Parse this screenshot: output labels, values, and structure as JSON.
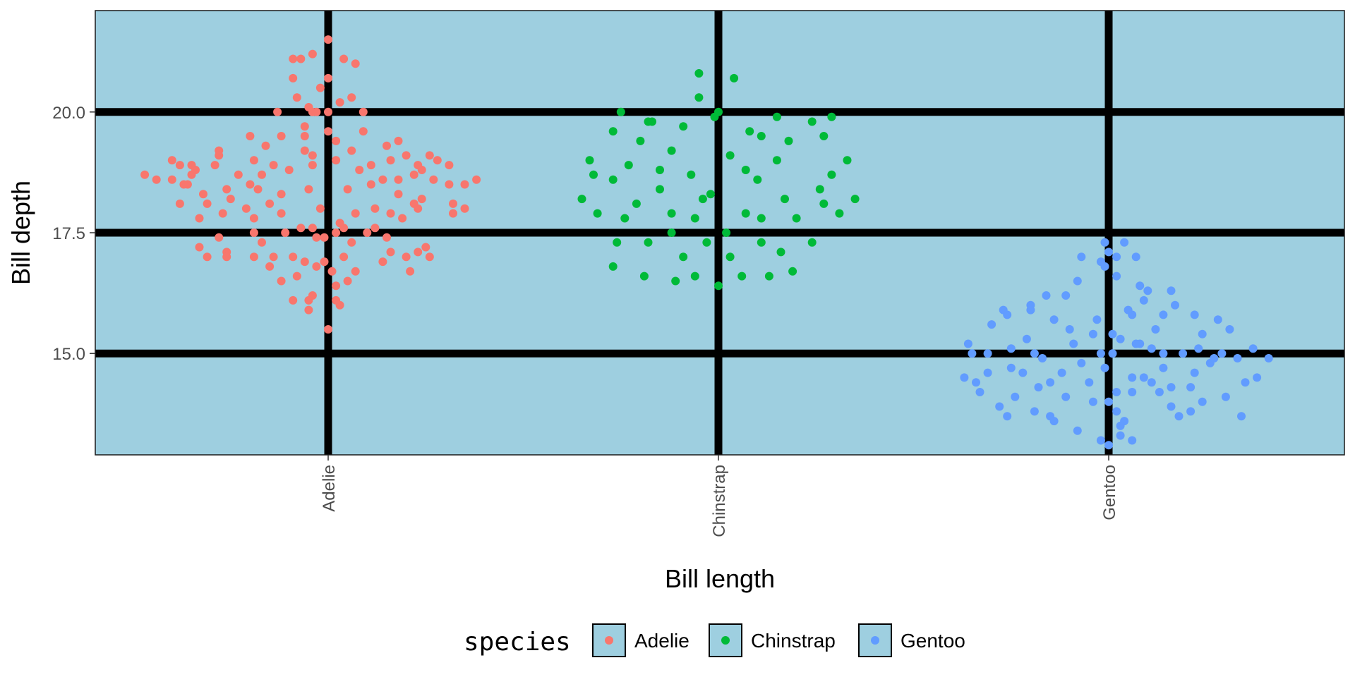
{
  "chart_data": {
    "type": "scatter",
    "title": "",
    "xlabel": "Bill length",
    "ylabel": "Bill depth",
    "categories": [
      "Adelie",
      "Chinstrap",
      "Gentoo"
    ],
    "ylim": [
      12.9,
      22.1
    ],
    "yticks": [
      15.0,
      17.5,
      20.0
    ],
    "ytick_labels": [
      "15.0",
      "17.5",
      "20.0"
    ],
    "grid": "major only, thick black lines",
    "panel_background": "#9ecfe0",
    "legend": {
      "title": "species",
      "position": "bottom",
      "entries": [
        "Adelie",
        "Chinstrap",
        "Gentoo"
      ]
    },
    "series": [
      {
        "name": "Adelie",
        "color": "#f8766d",
        "points": [
          [
            0.0,
            21.5
          ],
          [
            -0.04,
            21.2
          ],
          [
            0.04,
            21.1
          ],
          [
            -0.09,
            21.1
          ],
          [
            -0.07,
            21.1
          ],
          [
            0.07,
            21.0
          ],
          [
            -0.09,
            20.7
          ],
          [
            0.0,
            20.7
          ],
          [
            -0.02,
            20.5
          ],
          [
            0.06,
            20.3
          ],
          [
            -0.08,
            20.3
          ],
          [
            0.03,
            20.2
          ],
          [
            -0.05,
            20.1
          ],
          [
            -0.13,
            20.0
          ],
          [
            -0.04,
            20.0
          ],
          [
            0.0,
            20.0
          ],
          [
            0.09,
            20.0
          ],
          [
            -0.03,
            20.0
          ],
          [
            -0.06,
            19.7
          ],
          [
            0.0,
            19.6
          ],
          [
            0.09,
            19.6
          ],
          [
            -0.2,
            19.5
          ],
          [
            -0.12,
            19.5
          ],
          [
            -0.06,
            19.5
          ],
          [
            0.02,
            19.4
          ],
          [
            0.18,
            19.4
          ],
          [
            0.15,
            19.3
          ],
          [
            -0.16,
            19.3
          ],
          [
            -0.28,
            19.2
          ],
          [
            -0.28,
            19.1
          ],
          [
            -0.04,
            19.1
          ],
          [
            -0.06,
            19.2
          ],
          [
            0.06,
            19.2
          ],
          [
            0.2,
            19.1
          ],
          [
            0.26,
            19.1
          ],
          [
            -0.19,
            19.0
          ],
          [
            0.16,
            19.0
          ],
          [
            0.02,
            19.0
          ],
          [
            -0.14,
            18.9
          ],
          [
            -0.04,
            18.9
          ],
          [
            -0.29,
            18.9
          ],
          [
            -0.35,
            18.9
          ],
          [
            -0.38,
            18.9
          ],
          [
            -0.4,
            19.0
          ],
          [
            0.11,
            18.9
          ],
          [
            0.23,
            18.9
          ],
          [
            0.31,
            18.9
          ],
          [
            0.24,
            18.8
          ],
          [
            0.08,
            18.8
          ],
          [
            0.28,
            19.0
          ],
          [
            -0.34,
            18.8
          ],
          [
            -0.1,
            18.8
          ],
          [
            -0.17,
            18.7
          ],
          [
            0.22,
            18.7
          ],
          [
            -0.23,
            18.7
          ],
          [
            -0.47,
            18.7
          ],
          [
            0.14,
            18.6
          ],
          [
            0.18,
            18.6
          ],
          [
            -0.4,
            18.6
          ],
          [
            -0.36,
            18.5
          ],
          [
            -0.2,
            18.5
          ],
          [
            0.11,
            18.5
          ],
          [
            -0.18,
            18.4
          ],
          [
            0.05,
            18.4
          ],
          [
            -0.26,
            18.4
          ],
          [
            -0.05,
            18.4
          ],
          [
            0.18,
            18.3
          ],
          [
            -0.32,
            18.3
          ],
          [
            -0.12,
            18.3
          ],
          [
            -0.25,
            18.2
          ],
          [
            0.24,
            18.2
          ],
          [
            -0.15,
            18.1
          ],
          [
            0.22,
            18.1
          ],
          [
            -0.31,
            18.1
          ],
          [
            -0.38,
            18.1
          ],
          [
            -0.21,
            18.0
          ],
          [
            0.23,
            18.0
          ],
          [
            0.32,
            18.1
          ],
          [
            -0.02,
            18.0
          ],
          [
            0.12,
            18.0
          ],
          [
            0.35,
            18.0
          ],
          [
            -0.27,
            17.9
          ],
          [
            -0.12,
            17.9
          ],
          [
            0.07,
            17.9
          ],
          [
            0.16,
            17.9
          ],
          [
            -0.19,
            17.8
          ],
          [
            -0.33,
            17.8
          ],
          [
            0.32,
            17.9
          ],
          [
            0.19,
            17.8
          ],
          [
            0.03,
            17.7
          ],
          [
            -0.04,
            17.6
          ],
          [
            -0.07,
            17.6
          ],
          [
            0.04,
            17.6
          ],
          [
            0.12,
            17.6
          ],
          [
            -0.11,
            17.5
          ],
          [
            -0.19,
            17.5
          ],
          [
            0.02,
            17.5
          ],
          [
            0.1,
            17.5
          ],
          [
            -0.28,
            17.4
          ],
          [
            -0.03,
            17.4
          ],
          [
            -0.01,
            17.4
          ],
          [
            0.15,
            17.4
          ],
          [
            -0.17,
            17.3
          ],
          [
            0.06,
            17.3
          ],
          [
            0.25,
            17.2
          ],
          [
            -0.33,
            17.2
          ],
          [
            0.23,
            17.1
          ],
          [
            -0.31,
            17.0
          ],
          [
            -0.26,
            17.1
          ],
          [
            -0.09,
            17.0
          ],
          [
            0.16,
            17.1
          ],
          [
            0.26,
            17.0
          ],
          [
            0.2,
            17.0
          ],
          [
            -0.19,
            17.0
          ],
          [
            0.04,
            17.0
          ],
          [
            -0.14,
            17.0
          ],
          [
            -0.06,
            16.9
          ],
          [
            0.14,
            16.9
          ],
          [
            -0.01,
            16.9
          ],
          [
            -0.15,
            16.8
          ],
          [
            -0.03,
            16.8
          ],
          [
            0.01,
            16.7
          ],
          [
            0.07,
            16.7
          ],
          [
            -0.08,
            16.6
          ],
          [
            0.05,
            16.5
          ],
          [
            -0.12,
            16.5
          ],
          [
            0.02,
            16.4
          ],
          [
            -0.04,
            16.2
          ],
          [
            0.02,
            16.1
          ],
          [
            -0.05,
            16.1
          ],
          [
            -0.09,
            16.1
          ],
          [
            0.03,
            16.0
          ],
          [
            -0.05,
            15.9
          ],
          [
            0.0,
            15.5
          ],
          [
            -0.37,
            18.5
          ],
          [
            -0.35,
            18.7
          ],
          [
            0.27,
            18.6
          ],
          [
            0.31,
            18.5
          ],
          [
            -0.44,
            18.6
          ],
          [
            0.35,
            18.5
          ],
          [
            0.38,
            18.6
          ],
          [
            -0.26,
            17.0
          ],
          [
            0.21,
            16.7
          ]
        ]
      },
      {
        "name": "Chinstrap",
        "color": "#00ba38",
        "points": [
          [
            -0.05,
            20.8
          ],
          [
            0.04,
            20.7
          ],
          [
            -0.05,
            20.3
          ],
          [
            0.0,
            20.0
          ],
          [
            -0.25,
            20.0
          ],
          [
            -0.01,
            19.9
          ],
          [
            0.15,
            19.9
          ],
          [
            -0.18,
            19.8
          ],
          [
            -0.17,
            19.8
          ],
          [
            0.24,
            19.8
          ],
          [
            0.29,
            19.9
          ],
          [
            -0.27,
            19.6
          ],
          [
            0.08,
            19.6
          ],
          [
            0.11,
            19.5
          ],
          [
            0.27,
            19.5
          ],
          [
            -0.09,
            19.7
          ],
          [
            -0.2,
            19.4
          ],
          [
            0.18,
            19.4
          ],
          [
            -0.12,
            19.2
          ],
          [
            0.03,
            19.1
          ],
          [
            0.07,
            18.8
          ],
          [
            0.15,
            19.0
          ],
          [
            -0.33,
            19.0
          ],
          [
            -0.32,
            18.7
          ],
          [
            0.33,
            19.0
          ],
          [
            -0.15,
            18.8
          ],
          [
            0.29,
            18.7
          ],
          [
            -0.07,
            18.7
          ],
          [
            0.1,
            18.6
          ],
          [
            -0.27,
            18.6
          ],
          [
            -0.23,
            18.9
          ],
          [
            0.26,
            18.4
          ],
          [
            -0.15,
            18.4
          ],
          [
            -0.02,
            18.3
          ],
          [
            0.27,
            18.1
          ],
          [
            -0.21,
            18.1
          ],
          [
            0.17,
            18.2
          ],
          [
            -0.35,
            18.2
          ],
          [
            0.35,
            18.2
          ],
          [
            -0.04,
            18.2
          ],
          [
            -0.31,
            17.9
          ],
          [
            -0.12,
            17.9
          ],
          [
            0.07,
            17.9
          ],
          [
            -0.06,
            17.8
          ],
          [
            0.11,
            17.8
          ],
          [
            0.2,
            17.8
          ],
          [
            0.31,
            17.9
          ],
          [
            -0.24,
            17.8
          ],
          [
            0.02,
            17.5
          ],
          [
            -0.12,
            17.5
          ],
          [
            -0.26,
            17.3
          ],
          [
            -0.18,
            17.3
          ],
          [
            -0.03,
            17.3
          ],
          [
            0.11,
            17.3
          ],
          [
            0.24,
            17.3
          ],
          [
            0.16,
            17.1
          ],
          [
            -0.09,
            17.0
          ],
          [
            0.03,
            17.0
          ],
          [
            -0.27,
            16.8
          ],
          [
            -0.19,
            16.6
          ],
          [
            -0.06,
            16.6
          ],
          [
            0.06,
            16.6
          ],
          [
            0.13,
            16.6
          ],
          [
            0.19,
            16.7
          ],
          [
            0.0,
            16.4
          ],
          [
            -0.11,
            16.5
          ]
        ]
      },
      {
        "name": "Gentoo",
        "color": "#619cff",
        "points": [
          [
            -0.01,
            17.3
          ],
          [
            0.04,
            17.3
          ],
          [
            0.0,
            17.1
          ],
          [
            0.02,
            17.0
          ],
          [
            -0.07,
            17.0
          ],
          [
            0.07,
            17.0
          ],
          [
            -0.01,
            16.8
          ],
          [
            -0.02,
            16.9
          ],
          [
            0.02,
            16.6
          ],
          [
            0.08,
            16.4
          ],
          [
            -0.08,
            16.5
          ],
          [
            0.1,
            16.3
          ],
          [
            0.16,
            16.3
          ],
          [
            -0.11,
            16.2
          ],
          [
            -0.16,
            16.2
          ],
          [
            0.09,
            16.1
          ],
          [
            -0.2,
            16.0
          ],
          [
            0.17,
            16.0
          ],
          [
            -0.26,
            15.8
          ],
          [
            -0.14,
            15.7
          ],
          [
            -0.03,
            15.7
          ],
          [
            0.06,
            15.8
          ],
          [
            -0.2,
            15.9
          ],
          [
            -0.27,
            15.9
          ],
          [
            0.05,
            15.9
          ],
          [
            0.14,
            15.8
          ],
          [
            0.22,
            15.8
          ],
          [
            0.28,
            15.7
          ],
          [
            -0.3,
            15.6
          ],
          [
            0.31,
            15.5
          ],
          [
            -0.1,
            15.5
          ],
          [
            -0.04,
            15.4
          ],
          [
            0.01,
            15.4
          ],
          [
            0.12,
            15.5
          ],
          [
            0.03,
            15.3
          ],
          [
            -0.21,
            15.3
          ],
          [
            -0.09,
            15.2
          ],
          [
            0.07,
            15.2
          ],
          [
            -0.19,
            15.0
          ],
          [
            -0.25,
            15.1
          ],
          [
            -0.31,
            15.0
          ],
          [
            -0.35,
            15.0
          ],
          [
            0.01,
            15.0
          ],
          [
            -0.02,
            15.0
          ],
          [
            0.14,
            15.0
          ],
          [
            0.19,
            15.0
          ],
          [
            0.23,
            15.1
          ],
          [
            0.29,
            15.0
          ],
          [
            0.33,
            14.9
          ],
          [
            0.41,
            14.9
          ],
          [
            -0.07,
            14.8
          ],
          [
            -0.01,
            14.7
          ],
          [
            0.14,
            14.7
          ],
          [
            -0.25,
            14.7
          ],
          [
            0.26,
            14.8
          ],
          [
            -0.37,
            14.5
          ],
          [
            -0.34,
            14.4
          ],
          [
            -0.31,
            14.6
          ],
          [
            0.06,
            14.5
          ],
          [
            0.09,
            14.5
          ],
          [
            0.11,
            14.4
          ],
          [
            0.16,
            14.3
          ],
          [
            0.21,
            14.3
          ],
          [
            0.22,
            14.6
          ],
          [
            0.35,
            14.4
          ],
          [
            0.38,
            14.5
          ],
          [
            -0.05,
            14.4
          ],
          [
            -0.15,
            14.4
          ],
          [
            -0.18,
            14.3
          ],
          [
            0.02,
            14.2
          ],
          [
            0.06,
            14.2
          ],
          [
            0.13,
            14.2
          ],
          [
            -0.33,
            14.2
          ],
          [
            -0.24,
            14.1
          ],
          [
            -0.11,
            14.1
          ],
          [
            -0.04,
            14.0
          ],
          [
            0.0,
            14.0
          ],
          [
            0.24,
            14.0
          ],
          [
            0.3,
            14.1
          ],
          [
            -0.28,
            13.9
          ],
          [
            0.16,
            13.9
          ],
          [
            0.02,
            13.8
          ],
          [
            -0.19,
            13.8
          ],
          [
            -0.15,
            13.7
          ],
          [
            -0.26,
            13.7
          ],
          [
            0.04,
            13.6
          ],
          [
            0.21,
            13.8
          ],
          [
            -0.14,
            13.6
          ],
          [
            -0.08,
            13.4
          ],
          [
            0.03,
            13.5
          ],
          [
            0.03,
            13.3
          ],
          [
            0.0,
            13.1
          ],
          [
            0.06,
            13.2
          ],
          [
            -0.02,
            13.2
          ],
          [
            0.18,
            13.7
          ],
          [
            0.34,
            13.7
          ],
          [
            0.08,
            15.2
          ],
          [
            0.11,
            15.1
          ],
          [
            -0.12,
            14.6
          ],
          [
            0.27,
            14.9
          ],
          [
            0.37,
            15.1
          ],
          [
            -0.36,
            15.2
          ],
          [
            -0.17,
            14.9
          ],
          [
            0.24,
            15.4
          ],
          [
            -0.22,
            14.6
          ]
        ]
      }
    ]
  }
}
